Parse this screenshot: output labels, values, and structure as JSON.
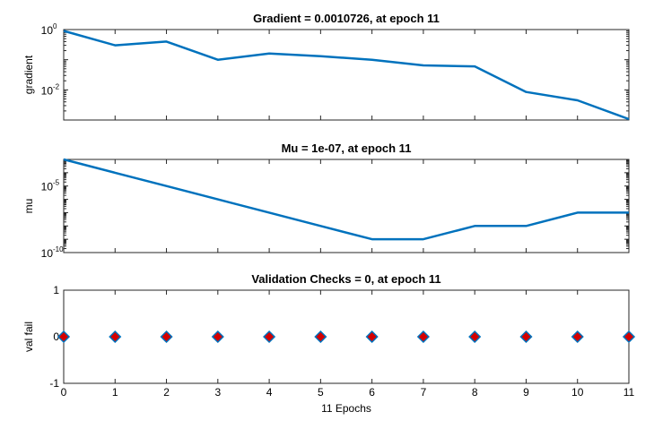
{
  "chart_data": [
    {
      "type": "line",
      "title": "Gradient = 0.0010726, at epoch 11",
      "ylabel": "gradient",
      "xlabel": "",
      "yscale": "log",
      "ylim": [
        0.001,
        1
      ],
      "xlim": [
        0,
        11
      ],
      "yticks": [
        {
          "base": "10",
          "exp": "0",
          "value": 1
        },
        {
          "base": "10",
          "exp": "-2",
          "value": 0.01
        }
      ],
      "line_color": "#0072BD",
      "series": [
        {
          "x": [
            0,
            1,
            2,
            3,
            4,
            5,
            6,
            7,
            8,
            9,
            10,
            11
          ],
          "values": [
            0.9,
            0.3,
            0.4,
            0.1,
            0.16,
            0.13,
            0.1,
            0.065,
            0.06,
            0.0085,
            0.0045,
            0.0010726
          ]
        }
      ]
    },
    {
      "type": "line",
      "title": "Mu = 1e-07, at epoch 11",
      "ylabel": "mu",
      "xlabel": "",
      "yscale": "log",
      "ylim": [
        1e-10,
        0.001
      ],
      "xlim": [
        0,
        11
      ],
      "yticks": [
        {
          "base": "10",
          "exp": "-5",
          "value": 1e-05
        },
        {
          "base": "10",
          "exp": "-10",
          "value": 1e-10
        }
      ],
      "line_color": "#0072BD",
      "series": [
        {
          "x": [
            0,
            1,
            2,
            3,
            4,
            5,
            6,
            7,
            8,
            9,
            10,
            11
          ],
          "values": [
            0.001,
            0.0001,
            1e-05,
            1e-06,
            1e-07,
            1e-08,
            1e-09,
            1e-09,
            1e-08,
            1e-08,
            1e-07,
            1e-07
          ]
        }
      ]
    },
    {
      "type": "scatter",
      "title": "Validation Checks = 0, at epoch 11",
      "ylabel": "val fail",
      "xlabel": "11 Epochs",
      "ylim": [
        -1,
        1
      ],
      "xlim": [
        0,
        11
      ],
      "yticks": [
        "-1",
        "0",
        "1"
      ],
      "xticks": [
        "0",
        "1",
        "2",
        "3",
        "4",
        "5",
        "6",
        "7",
        "8",
        "9",
        "10",
        "11"
      ],
      "marker": "diamond",
      "marker_face_color": "#D40000",
      "marker_edge_color": "#0072BD",
      "series": [
        {
          "x": [
            0,
            1,
            2,
            3,
            4,
            5,
            6,
            7,
            8,
            9,
            10,
            11
          ],
          "values": [
            0,
            0,
            0,
            0,
            0,
            0,
            0,
            0,
            0,
            0,
            0,
            0
          ]
        }
      ]
    }
  ]
}
